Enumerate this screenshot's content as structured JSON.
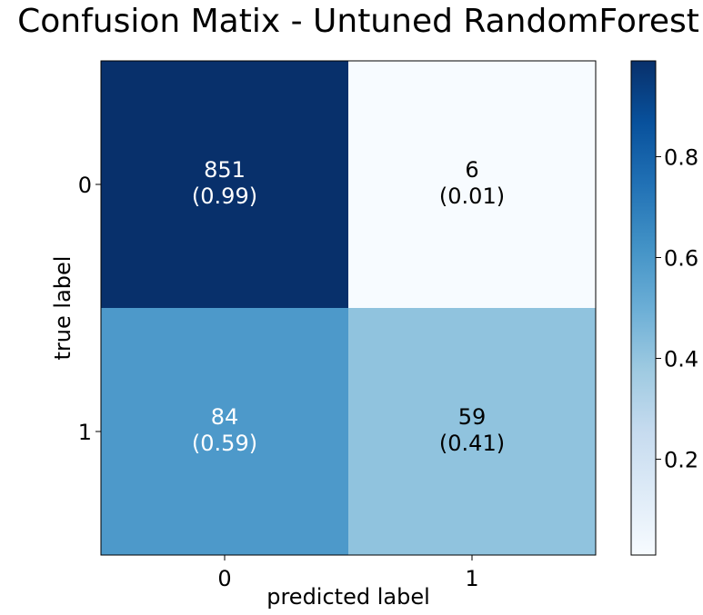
{
  "chart_data": {
    "type": "heatmap",
    "title": "Confusion Matix - Untuned RandomForest",
    "xlabel": "predicted label",
    "ylabel": "true label",
    "x_categories": [
      "0",
      "1"
    ],
    "y_categories": [
      "0",
      "1"
    ],
    "counts": [
      [
        851,
        6
      ],
      [
        84,
        59
      ]
    ],
    "normalized": [
      [
        0.99,
        0.01
      ],
      [
        0.59,
        0.41
      ]
    ],
    "cell_labels": [
      [
        "851",
        "(0.99)",
        "6",
        "(0.01)"
      ],
      [
        "84",
        "(0.59)",
        "59",
        "(0.41)"
      ]
    ],
    "colormap": "Blues",
    "colorbar": {
      "range": [
        0.01,
        0.99
      ],
      "ticks": [
        0.2,
        0.4,
        0.6,
        0.8
      ],
      "tick_labels": [
        "0.2",
        "0.4",
        "0.6",
        "0.8"
      ]
    },
    "grid": false
  }
}
